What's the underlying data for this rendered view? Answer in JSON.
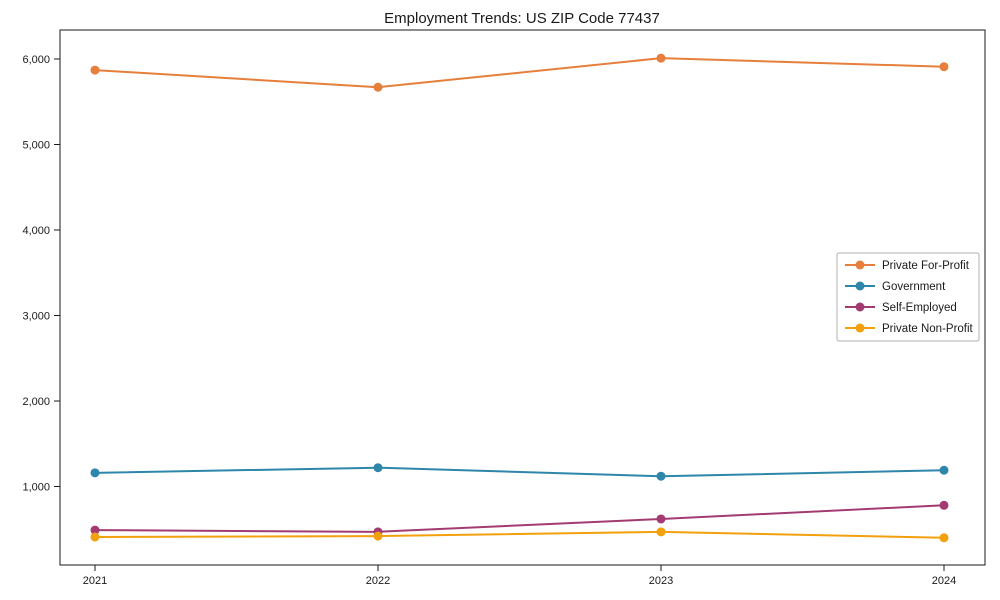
{
  "window": {
    "title": "Employment Trends: US ZIP Code 77437"
  },
  "chart_data": {
    "type": "line",
    "title": "Employment Trends: US ZIP Code 77437",
    "categories": [
      "2021",
      "2022",
      "2023",
      "2024"
    ],
    "x": [
      2021,
      2022,
      2023,
      2024
    ],
    "series": [
      {
        "name": "Private For-Profit",
        "color": "#E67F3B",
        "values": [
          5870,
          5670,
          6010,
          5910
        ]
      },
      {
        "name": "Government",
        "color": "#2E86AB",
        "values": [
          1160,
          1220,
          1120,
          1190
        ]
      },
      {
        "name": "Self-Employed",
        "color": "#A23B72",
        "values": [
          490,
          470,
          620,
          780
        ]
      },
      {
        "name": "Private Non-Profit",
        "color": "#F2A00D",
        "values": [
          410,
          420,
          470,
          400
        ]
      }
    ],
    "xlabel": "",
    "ylabel": "",
    "y_ticks": [
      1000,
      2000,
      3000,
      4000,
      5000,
      6000
    ],
    "y_tick_labels": [
      "1,000",
      "2,000",
      "3,000",
      "4,000",
      "5,000",
      "6,000"
    ],
    "ylim": [
      80,
      6340
    ],
    "xlim_categories_padded": true,
    "grid": false,
    "legend_position": "right-center",
    "marker": "circle",
    "spine_color": "#1a1a1a",
    "legend_border_color": "#b0b0b0"
  }
}
